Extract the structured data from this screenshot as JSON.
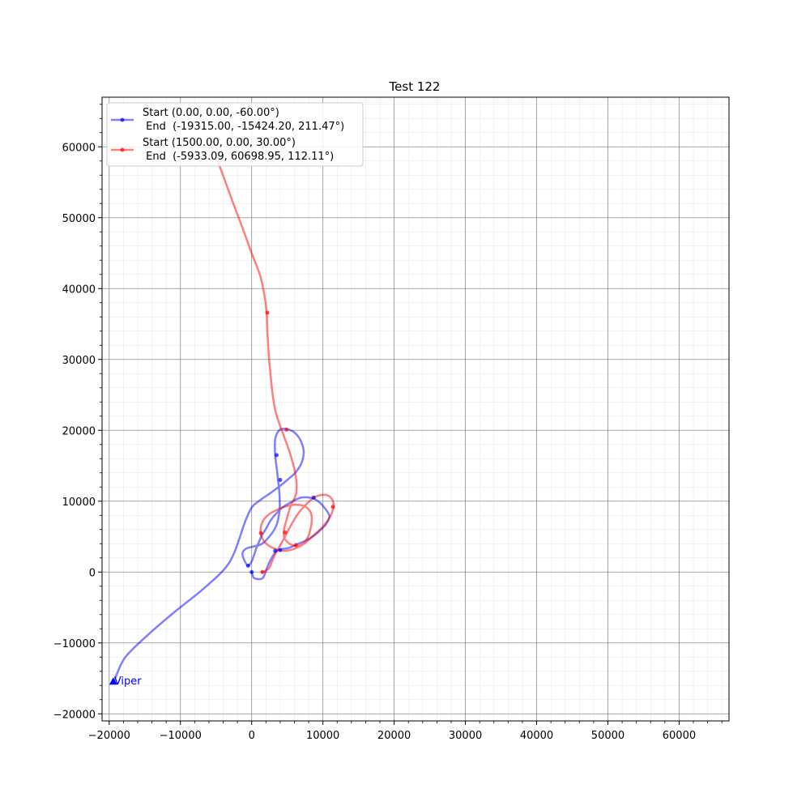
{
  "chart_data": {
    "type": "line",
    "title": "Test 122",
    "xlabel": "",
    "ylabel": "",
    "xlim": [
      -21000,
      67000
    ],
    "ylim": [
      -21000,
      67000
    ],
    "xticks": [
      -20000,
      -10000,
      0,
      10000,
      20000,
      30000,
      40000,
      50000,
      60000
    ],
    "yticks": [
      -20000,
      -10000,
      0,
      10000,
      20000,
      30000,
      40000,
      50000,
      60000
    ],
    "xtick_labels": [
      "−20000",
      "−10000",
      "0",
      "10000",
      "20000",
      "30000",
      "40000",
      "50000",
      "60000"
    ],
    "ytick_labels": [
      "−20000",
      "−10000",
      "0",
      "10000",
      "20000",
      "30000",
      "40000",
      "50000",
      "60000"
    ],
    "grid": true,
    "minor_grid": true,
    "legend_position": "top-left",
    "series": [
      {
        "name_line1": "Start (0.00, 0.00, -60.00°)",
        "name_line2": " End  (-19315.00, -15424.20, 211.47°)",
        "color": "#0000ff",
        "x": [
          0,
          300,
          900,
          1500,
          1800,
          2200,
          2700,
          3400,
          4000,
          5200,
          6300,
          7500,
          8700,
          9400,
          10400,
          10900,
          10200,
          9200,
          8200,
          6900,
          5600,
          4300,
          3300,
          2600,
          2000,
          1400,
          1000,
          700,
          400,
          0,
          -500,
          -1000,
          -1300,
          -800,
          200,
          1600,
          3300,
          3900,
          3900,
          3700,
          3500,
          3300,
          3300,
          3700,
          4300,
          5200,
          6000,
          6800,
          7300,
          7000,
          6100,
          5000,
          3900,
          2700,
          1400,
          0,
          -1000,
          -1800,
          -2500,
          -3300,
          -4600,
          -7300,
          -10900,
          -14500,
          -17800,
          -19315
        ],
        "y": [
          0,
          -800,
          -1000,
          -900,
          -400,
          700,
          1800,
          2900,
          3200,
          3400,
          3900,
          4400,
          5100,
          5700,
          6700,
          7900,
          9100,
          10100,
          10500,
          10500,
          9900,
          9100,
          8100,
          7200,
          6100,
          5100,
          4200,
          3500,
          2600,
          1500,
          900,
          1600,
          2600,
          3300,
          3600,
          4100,
          6200,
          8600,
          11000,
          13000,
          14800,
          16500,
          18700,
          19800,
          20200,
          20100,
          19700,
          18700,
          17100,
          15400,
          14000,
          13000,
          12100,
          11200,
          10300,
          9100,
          6900,
          4500,
          2600,
          1100,
          -400,
          -2800,
          -5700,
          -8800,
          -12100,
          -15424
        ]
      },
      {
        "name_line1": "Start (1500.00, 0.00, 30.00°)",
        "name_line2": " End  (-5933.09, 60698.95, 112.11°)",
        "color": "#ff0000",
        "x": [
          1500,
          2400,
          2900,
          3400,
          4300,
          5300,
          6400,
          7600,
          8900,
          10300,
          11200,
          11500,
          11000,
          9900,
          8600,
          7500,
          6500,
          5400,
          4500,
          3800,
          3000,
          2300,
          1700,
          1300,
          1300,
          1700,
          2500,
          3600,
          4900,
          6100,
          7400,
          8300,
          8400,
          8000,
          7400,
          6600,
          5700,
          4700,
          4500,
          4900,
          5500,
          6200,
          6300,
          6000,
          5400,
          4700,
          4000,
          3400,
          3000,
          2700,
          2400,
          2200,
          2100,
          1800,
          1200,
          0,
          -1300,
          -2700,
          -4100,
          -5400,
          -5933
        ],
        "y": [
          0,
          500,
          1600,
          2700,
          4300,
          6200,
          8100,
          9500,
          10600,
          10900,
          10400,
          9300,
          7800,
          6300,
          5100,
          4100,
          3500,
          3100,
          3000,
          3100,
          3400,
          3800,
          4400,
          5300,
          6400,
          7400,
          8200,
          8800,
          9300,
          9500,
          9300,
          8400,
          6900,
          5200,
          4200,
          3700,
          3800,
          4600,
          5700,
          7400,
          9400,
          10900,
          12600,
          14500,
          16700,
          18700,
          20600,
          22500,
          24600,
          27300,
          30700,
          34000,
          36600,
          39000,
          41800,
          45000,
          48600,
          52300,
          56200,
          59700,
          60699
        ]
      }
    ],
    "markers": [
      {
        "x": 0,
        "y": 0,
        "color": "#0000ff"
      },
      {
        "x": 4000,
        "y": 3100,
        "color": "#0000ff"
      },
      {
        "x": 8700,
        "y": 10500,
        "color": "#0000ff"
      },
      {
        "x": 3300,
        "y": 3000,
        "color": "#0000ff"
      },
      {
        "x": -500,
        "y": 900,
        "color": "#0000ff"
      },
      {
        "x": 4000,
        "y": 13000,
        "color": "#0000ff"
      },
      {
        "x": 3500,
        "y": 16500,
        "color": "#0000ff"
      },
      {
        "x": 1500,
        "y": 0,
        "color": "#ff0000"
      },
      {
        "x": 11400,
        "y": 9200,
        "color": "#ff0000"
      },
      {
        "x": 6200,
        "y": 3800,
        "color": "#ff0000"
      },
      {
        "x": 1300,
        "y": 5500,
        "color": "#ff0000"
      },
      {
        "x": 4700,
        "y": 5600,
        "color": "#ff0000"
      },
      {
        "x": 4900,
        "y": 20100,
        "color": "#ff0000"
      },
      {
        "x": 2200,
        "y": 36600,
        "color": "#ff0000"
      }
    ],
    "annotations": [
      {
        "text": "Viper",
        "x": -19315,
        "y": -15424,
        "color": "#0000ff",
        "symbol": "triangle"
      }
    ]
  }
}
